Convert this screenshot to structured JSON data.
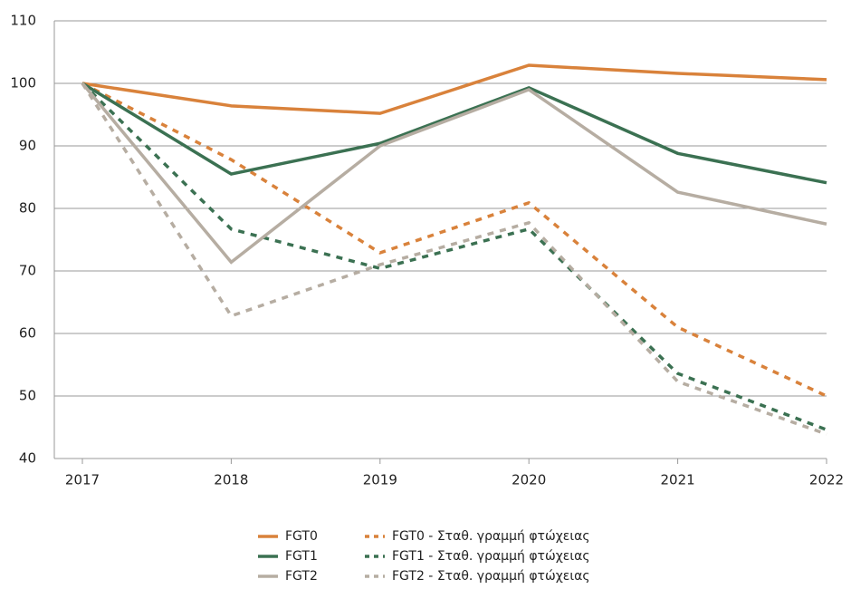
{
  "chart_data": {
    "type": "line",
    "categories": [
      "2017",
      "2018",
      "2019",
      "2020",
      "2021",
      "2022"
    ],
    "series": [
      {
        "name": "FGT0",
        "color": "#d9823b",
        "style": "solid",
        "values": [
          100,
          96.4,
          95.2,
          102.9,
          101.6,
          100.6
        ]
      },
      {
        "name": "FGT1",
        "color": "#3b7152",
        "style": "solid",
        "values": [
          100,
          85.5,
          90.4,
          99.3,
          88.8,
          84.1
        ]
      },
      {
        "name": "FGT2",
        "color": "#b6ada2",
        "style": "solid",
        "values": [
          100,
          71.4,
          90,
          99,
          82.6,
          77.5
        ]
      },
      {
        "name": "FGT0 - Σταθ. γραμμή φτώχειας",
        "color": "#d9823b",
        "style": "dashed",
        "values": [
          100,
          87.8,
          72.9,
          80.9,
          61,
          50
        ]
      },
      {
        "name": "FGT1 - Σταθ. γραμμή φτώχειας",
        "color": "#3b7152",
        "style": "dashed",
        "values": [
          100,
          76.7,
          70.4,
          76.7,
          53.6,
          44.6
        ]
      },
      {
        "name": "FGT2 - Σταθ. γραμμή φτώχειας",
        "color": "#b6ada2",
        "style": "dashed",
        "values": [
          100,
          62.8,
          71,
          77.7,
          52.3,
          43.9
        ]
      }
    ],
    "ylim": [
      40,
      110
    ],
    "yticks": [
      40,
      50,
      60,
      70,
      80,
      90,
      100,
      110
    ],
    "grid": true,
    "legend": "bottom"
  }
}
